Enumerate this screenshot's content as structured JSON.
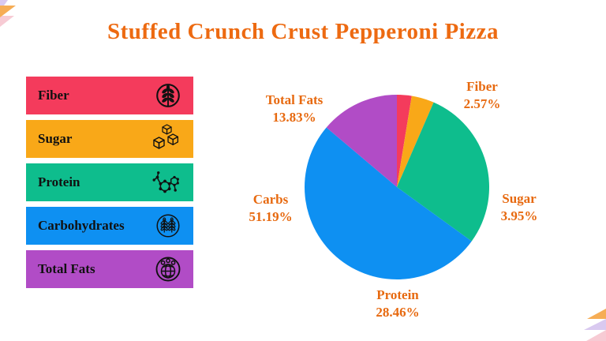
{
  "page": {
    "title": "Stuffed Crunch Crust Pepperoni Pizza"
  },
  "colors": {
    "title_text": "#ED6A11",
    "pie_label_text": "#E7690F",
    "legend_text": "#111111",
    "fiber": "#F43B5C",
    "sugar": "#F9A818",
    "protein": "#0EBD8D",
    "carbs": "#0E90F2",
    "total_fats": "#B14CC6",
    "decoration_orange": "#F6AD55",
    "decoration_lavender": "#D9C9F0",
    "decoration_pink": "#F7CBD4"
  },
  "legend": {
    "items": [
      {
        "label": "Fiber",
        "color": "#F43B5C",
        "icon": "wheat-grain-circle-icon"
      },
      {
        "label": "Sugar",
        "color": "#F9A818",
        "icon": "sugar-cubes-icon"
      },
      {
        "label": "Protein",
        "color": "#0EBD8D",
        "icon": "molecule-icon"
      },
      {
        "label": "Carbohydrates",
        "color": "#0E90F2",
        "icon": "wheat-stalks-circle-icon"
      },
      {
        "label": "Total Fats",
        "color": "#B14CC6",
        "icon": "fats-globe-circle-icon"
      }
    ]
  },
  "chart_data": {
    "type": "pie",
    "title": "Stuffed Crunch Crust Pepperoni Pizza",
    "labels": [
      "Fiber",
      "Sugar",
      "Protein",
      "Carbs",
      "Total Fats"
    ],
    "values": [
      2.57,
      3.95,
      28.46,
      51.19,
      13.83
    ],
    "display_values": [
      "2.57%",
      "3.95%",
      "28.46%",
      "51.19%",
      "13.83%"
    ],
    "colors": [
      "#F43B5C",
      "#F9A818",
      "#0EBD8D",
      "#0E90F2",
      "#B14CC6"
    ],
    "start_angle_deg": 0,
    "direction": "clockwise",
    "legend_position": "left",
    "label_text_color": "#E7690F"
  }
}
